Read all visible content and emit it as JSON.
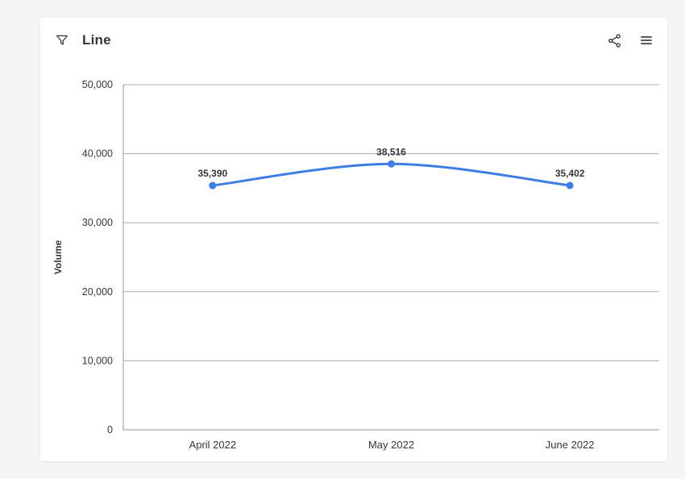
{
  "header": {
    "title": "Line",
    "filter_icon": "filter-icon",
    "share_icon": "share-icon",
    "menu_icon": "menu-icon"
  },
  "colors": {
    "page_bg": "#f5f5f6",
    "card_bg": "#ffffff",
    "icon": "#32363a",
    "title_text": "#32363a",
    "axis_text": "#33363c",
    "data_label_text": "#32363a",
    "gridline": "#a6aabf",
    "axis_line": "#8d92a8",
    "series_line": "#3d7de4",
    "point_fill": "#3d7de4"
  },
  "chart_data": {
    "type": "line",
    "title": "Line",
    "categories": [
      "April 2022",
      "May 2022",
      "June 2022"
    ],
    "series": [
      {
        "name": "Volume",
        "values": [
          35390,
          38516,
          35402
        ]
      }
    ],
    "data_labels": [
      "35,390",
      "38,516",
      "35,402"
    ],
    "xlabel": "",
    "ylabel": "Volume",
    "ylim": [
      0,
      50000
    ],
    "ytick_step": 10000,
    "ytick_labels": [
      "0",
      "10,000",
      "20,000",
      "30,000",
      "40,000",
      "50,000"
    ],
    "grid": true,
    "legend": "none",
    "smooth": true
  }
}
